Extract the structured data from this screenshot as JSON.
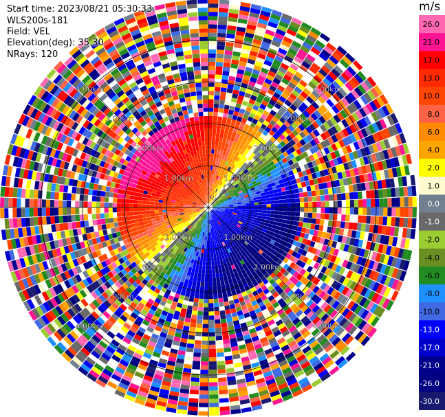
{
  "header": {
    "start_time": "Start time: 2023/08/21 05:30:33",
    "instrument": "WLS200s-181",
    "field": "Field: VEL",
    "elevation": "Elevation(deg): 35.30",
    "nrays": "NRays: 120"
  },
  "colorbar": {
    "unit": "m/s",
    "labels": [
      "26.0",
      "21.0",
      "17.0",
      "13.0",
      "10.0",
      "8.0",
      "6.0",
      "4.0",
      "2.0",
      "1.0",
      "0.0",
      "-1.0",
      "-2.0",
      "-4.0",
      "-6.0",
      "-8.0",
      "-10.0",
      "-13.0",
      "-17.0",
      "-21.0",
      "-26.0",
      "-30.0"
    ],
    "colors": [
      "#ff69b4",
      "#ff1493",
      "#ff0000",
      "#ff2a00",
      "#ff4500",
      "#ff6347",
      "#ff8c00",
      "#ffa500",
      "#ffff00",
      "#fffacd",
      "#708090",
      "#696969",
      "#9acd32",
      "#6b8e23",
      "#228b22",
      "#1e90ff",
      "#4169e1",
      "#0000ff",
      "#0000cd",
      "#00008b",
      "#000080",
      "#191970"
    ]
  },
  "chart_data": {
    "type": "heatmap",
    "title": "",
    "xlabel": "",
    "ylabel": "",
    "rings_km": [
      1,
      2,
      3,
      4
    ],
    "ring_labels": [
      "1.00km",
      "2.00km",
      "3.00km",
      "4.00km"
    ],
    "nrays": 120,
    "field_pattern": "Radial velocity: positive (red/pink) toward upper-left, negative (blue) toward lower-right; noisy multicolor beyond ~2.2 km"
  }
}
